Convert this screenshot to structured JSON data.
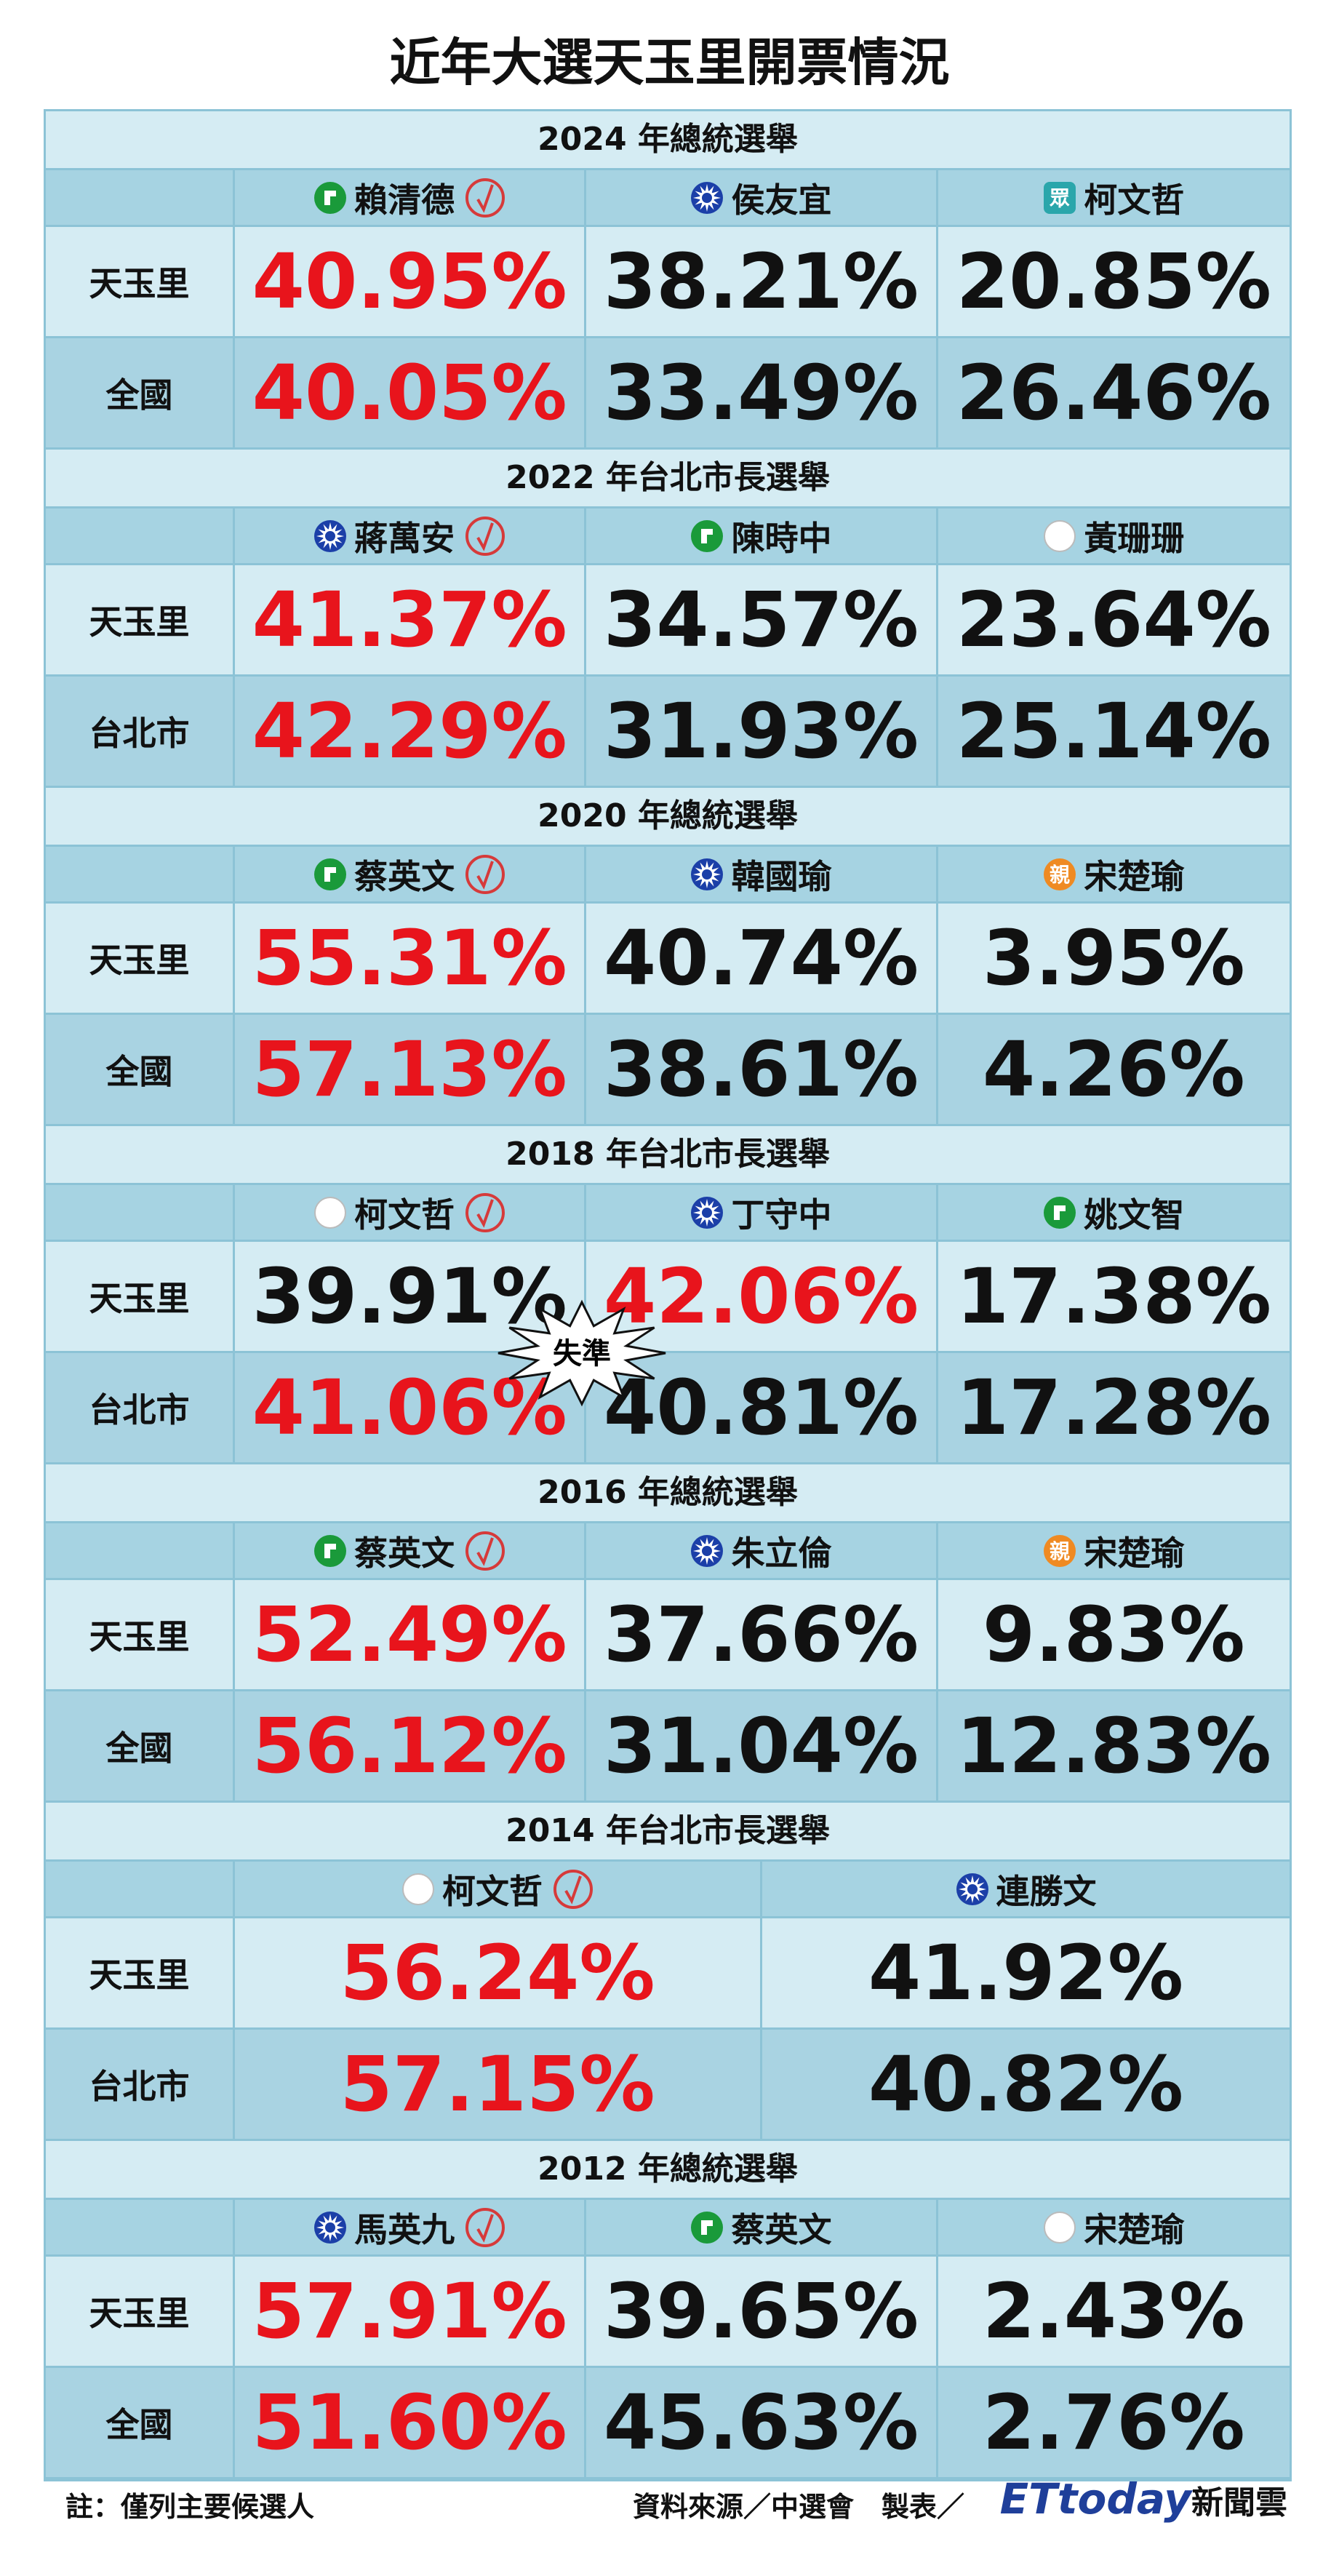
{
  "title": "近年大選天玉里開票情況",
  "parties": {
    "tpp": {
      "mark": "眾"
    },
    "pfp": {
      "mark": "親"
    }
  },
  "sections": [
    {
      "heading": "2024 年總統選舉",
      "candidates": [
        {
          "name": "賴清德",
          "party": "dpp",
          "elected": true
        },
        {
          "name": "侯友宜",
          "party": "kmt"
        },
        {
          "name": "柯文哲",
          "party": "tpp"
        }
      ],
      "rows": [
        {
          "label": "天玉里",
          "values": [
            "40.95%",
            "38.21%",
            "20.85%"
          ],
          "highlight": 0
        },
        {
          "label": "全國",
          "values": [
            "40.05%",
            "33.49%",
            "26.46%"
          ],
          "highlight": 0
        }
      ]
    },
    {
      "heading": "2022 年台北市長選舉",
      "candidates": [
        {
          "name": "蔣萬安",
          "party": "kmt",
          "elected": true
        },
        {
          "name": "陳時中",
          "party": "dpp"
        },
        {
          "name": "黃珊珊",
          "party": "ind"
        }
      ],
      "rows": [
        {
          "label": "天玉里",
          "values": [
            "41.37%",
            "34.57%",
            "23.64%"
          ],
          "highlight": 0
        },
        {
          "label": "台北市",
          "values": [
            "42.29%",
            "31.93%",
            "25.14%"
          ],
          "highlight": 0
        }
      ]
    },
    {
      "heading": "2020 年總統選舉",
      "candidates": [
        {
          "name": "蔡英文",
          "party": "dpp",
          "elected": true
        },
        {
          "name": "韓國瑜",
          "party": "kmt"
        },
        {
          "name": "宋楚瑜",
          "party": "pfp"
        }
      ],
      "rows": [
        {
          "label": "天玉里",
          "values": [
            "55.31%",
            "40.74%",
            "3.95%"
          ],
          "highlight": 0
        },
        {
          "label": "全國",
          "values": [
            "57.13%",
            "38.61%",
            "4.26%"
          ],
          "highlight": 0
        }
      ]
    },
    {
      "heading": "2018 年台北市長選舉",
      "candidates": [
        {
          "name": "柯文哲",
          "party": "ind",
          "elected": true
        },
        {
          "name": "丁守中",
          "party": "kmt"
        },
        {
          "name": "姚文智",
          "party": "dpp"
        }
      ],
      "rows": [
        {
          "label": "天玉里",
          "values": [
            "39.91%",
            "42.06%",
            "17.38%"
          ],
          "highlight": 1
        },
        {
          "label": "台北市",
          "values": [
            "41.06%",
            "40.81%",
            "17.28%"
          ],
          "highlight": 0
        }
      ]
    },
    {
      "heading": "2016 年總統選舉",
      "candidates": [
        {
          "name": "蔡英文",
          "party": "dpp",
          "elected": true
        },
        {
          "name": "朱立倫",
          "party": "kmt"
        },
        {
          "name": "宋楚瑜",
          "party": "pfp"
        }
      ],
      "rows": [
        {
          "label": "天玉里",
          "values": [
            "52.49%",
            "37.66%",
            "9.83%"
          ],
          "highlight": 0
        },
        {
          "label": "全國",
          "values": [
            "56.12%",
            "31.04%",
            "12.83%"
          ],
          "highlight": 0
        }
      ]
    },
    {
      "heading": "2014 年台北市長選舉",
      "candidates": [
        {
          "name": "柯文哲",
          "party": "ind",
          "elected": true
        },
        {
          "name": "連勝文",
          "party": "kmt"
        }
      ],
      "rows": [
        {
          "label": "天玉里",
          "values": [
            "56.24%",
            "41.92%"
          ],
          "highlight": 0
        },
        {
          "label": "台北市",
          "values": [
            "57.15%",
            "40.82%"
          ],
          "highlight": 0
        }
      ]
    },
    {
      "heading": "2012 年總統選舉",
      "candidates": [
        {
          "name": "馬英九",
          "party": "kmt",
          "elected": true
        },
        {
          "name": "蔡英文",
          "party": "dpp"
        },
        {
          "name": "宋楚瑜",
          "party": "ind"
        }
      ],
      "rows": [
        {
          "label": "天玉里",
          "values": [
            "57.91%",
            "39.65%",
            "2.43%"
          ],
          "highlight": 0
        },
        {
          "label": "全國",
          "values": [
            "51.60%",
            "45.63%",
            "2.76%"
          ],
          "highlight": 0
        }
      ]
    }
  ],
  "annotation": "失準",
  "footer": {
    "note": "註：僅列主要候選人",
    "source": "資料來源／中選會　製表／",
    "logo": "ETtoday",
    "logo_suffix": "新聞雲"
  }
}
